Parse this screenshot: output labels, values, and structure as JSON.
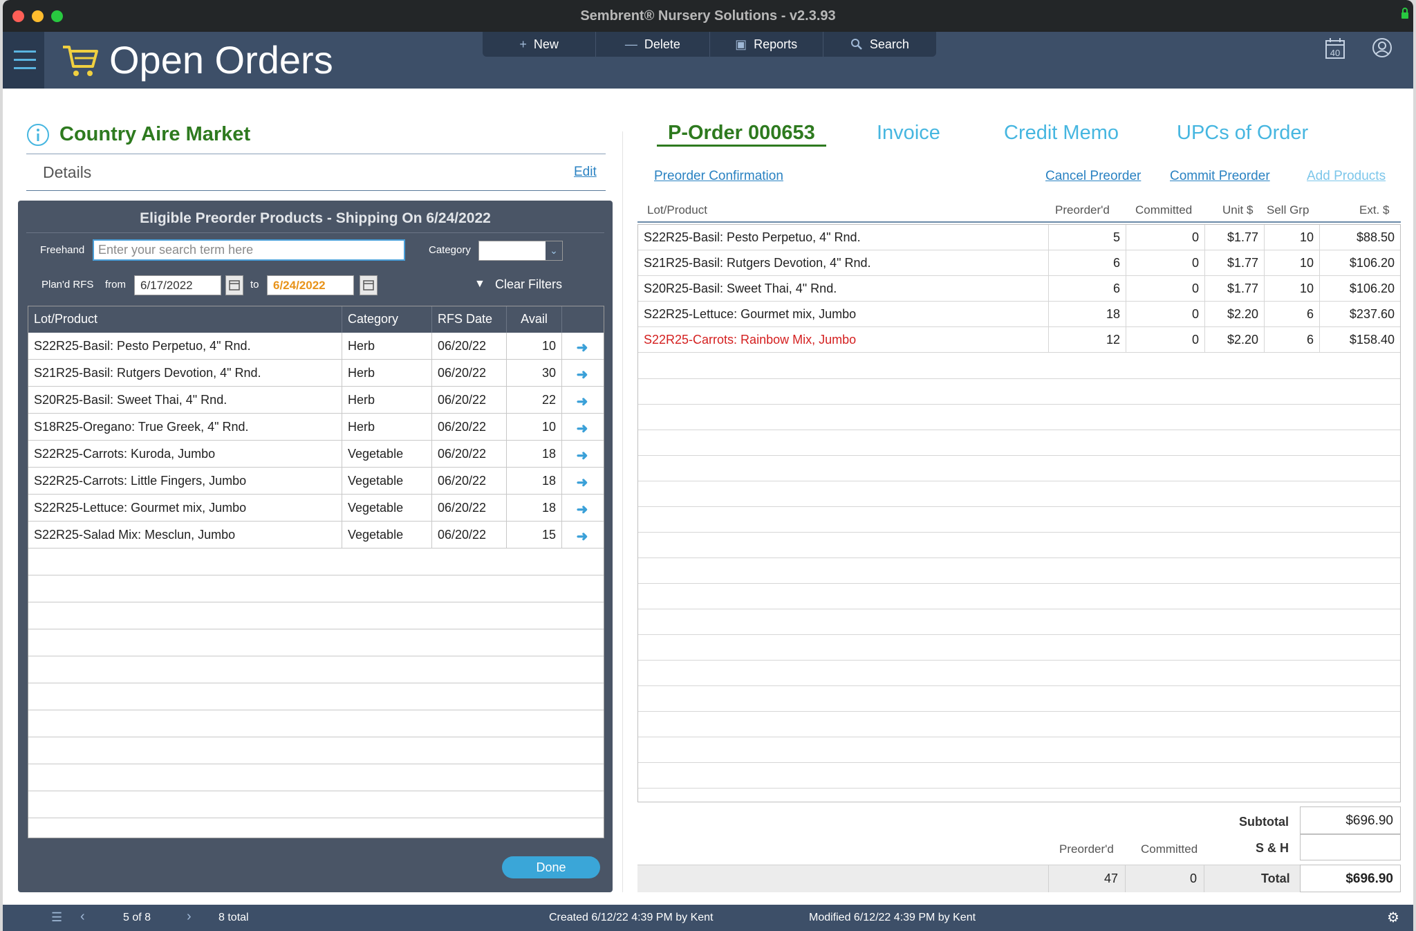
{
  "window": {
    "title": "Sembrent® Nursery Solutions - v2.3.93"
  },
  "header": {
    "title": "Open Orders",
    "toolbar": [
      {
        "label": "New",
        "icon": "plus-icon"
      },
      {
        "label": "Delete",
        "icon": "minus-icon"
      },
      {
        "label": "Reports",
        "icon": "report-icon"
      },
      {
        "label": "Search",
        "icon": "search-icon"
      }
    ],
    "calendar_day": "40"
  },
  "customer": {
    "name": "Country Aire Market",
    "details_label": "Details",
    "edit_label": "Edit"
  },
  "eligible": {
    "title": "Eligible Preorder Products - Shipping On 6/24/2022",
    "freehand_label": "Freehand",
    "search_placeholder": "Enter your search term here",
    "category_label": "Category",
    "category_value": "",
    "plan_rfs_label": "Plan'd RFS",
    "from_label": "from",
    "from_date": "6/17/2022",
    "to_label": "to",
    "to_date": "6/24/2022",
    "clear_filters_label": "Clear Filters",
    "columns": [
      "Lot/Product",
      "Category",
      "RFS Date",
      "Avail"
    ],
    "rows": [
      {
        "product": "S22R25-Basil: Pesto Perpetuo, 4\" Rnd.",
        "category": "Herb",
        "rfs": "06/20/22",
        "avail": "10"
      },
      {
        "product": "S21R25-Basil: Rutgers Devotion, 4\" Rnd.",
        "category": "Herb",
        "rfs": "06/20/22",
        "avail": "30"
      },
      {
        "product": "S20R25-Basil: Sweet Thai, 4\" Rnd.",
        "category": "Herb",
        "rfs": "06/20/22",
        "avail": "22"
      },
      {
        "product": "S18R25-Oregano: True Greek, 4\" Rnd.",
        "category": "Herb",
        "rfs": "06/20/22",
        "avail": "10"
      },
      {
        "product": "S22R25-Carrots: Kuroda, Jumbo",
        "category": "Vegetable",
        "rfs": "06/20/22",
        "avail": "18"
      },
      {
        "product": "S22R25-Carrots: Little Fingers, Jumbo",
        "category": "Vegetable",
        "rfs": "06/20/22",
        "avail": "18"
      },
      {
        "product": "S22R25-Lettuce: Gourmet mix, Jumbo",
        "category": "Vegetable",
        "rfs": "06/20/22",
        "avail": "18"
      },
      {
        "product": "S22R25-Salad Mix: Mesclun, Jumbo",
        "category": "Vegetable",
        "rfs": "06/20/22",
        "avail": "15"
      }
    ],
    "done_label": "Done"
  },
  "order": {
    "tabs": [
      {
        "label": "P-Order 000653",
        "active": true
      },
      {
        "label": "Invoice"
      },
      {
        "label": "Credit Memo"
      },
      {
        "label": "UPCs of Order"
      }
    ],
    "links": {
      "confirmation": "Preorder Confirmation",
      "cancel": "Cancel Preorder",
      "commit": "Commit Preorder",
      "add": "Add Products"
    },
    "columns": [
      "Lot/Product",
      "Preorder'd",
      "Committed",
      "Unit $",
      "Sell Grp",
      "Ext. $"
    ],
    "rows": [
      {
        "product": "S22R25-Basil: Pesto Perpetuo, 4\" Rnd.",
        "preordered": "5",
        "committed": "0",
        "unit": "$1.77",
        "sellgrp": "10",
        "ext": "$88.50",
        "highlight": false
      },
      {
        "product": "S21R25-Basil: Rutgers Devotion, 4\" Rnd.",
        "preordered": "6",
        "committed": "0",
        "unit": "$1.77",
        "sellgrp": "10",
        "ext": "$106.20",
        "highlight": false
      },
      {
        "product": "S20R25-Basil: Sweet Thai, 4\" Rnd.",
        "preordered": "6",
        "committed": "0",
        "unit": "$1.77",
        "sellgrp": "10",
        "ext": "$106.20",
        "highlight": false
      },
      {
        "product": "S22R25-Lettuce: Gourmet mix, Jumbo",
        "preordered": "18",
        "committed": "0",
        "unit": "$2.20",
        "sellgrp": "6",
        "ext": "$237.60",
        "highlight": false
      },
      {
        "product": "S22R25-Carrots: Rainbow Mix, Jumbo",
        "preordered": "12",
        "committed": "0",
        "unit": "$2.20",
        "sellgrp": "6",
        "ext": "$158.40",
        "highlight": true
      }
    ],
    "totals": {
      "subtotal_label": "Subtotal",
      "subtotal": "$696.90",
      "sh_label": "S & H",
      "sh": "",
      "preordered_label": "Preorder'd",
      "committed_label": "Committed",
      "preordered_total": "47",
      "committed_total": "0",
      "total_label": "Total",
      "total": "$696.90"
    }
  },
  "status": {
    "record": "5 of 8",
    "total": "8 total",
    "created": "Created 6/12/22 4:39 PM by Kent",
    "modified": "Modified 6/12/22 4:39 PM by Kent"
  },
  "colors": {
    "header_bg": "#3d4f68",
    "accent_green": "#2e7a1f",
    "accent_blue": "#46b6e0",
    "warning_red": "#d42020"
  }
}
